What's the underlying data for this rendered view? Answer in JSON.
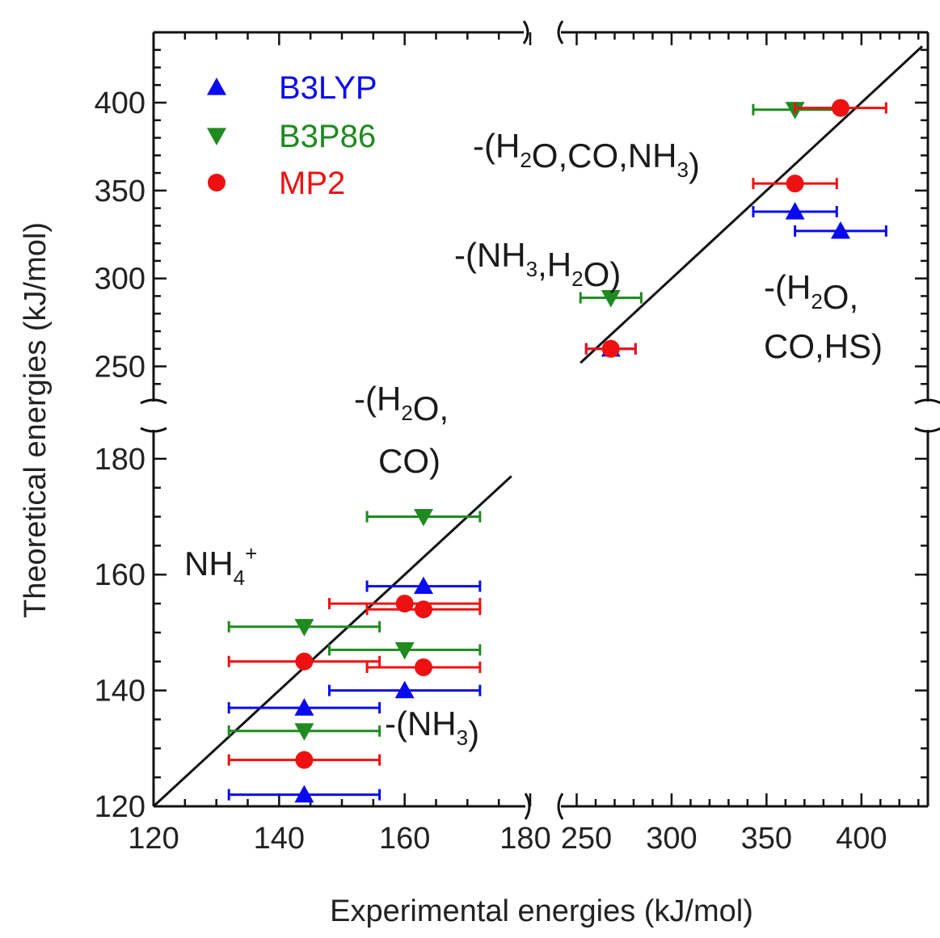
{
  "chart_data": {
    "type": "scatter",
    "xlabel": "Experimental energies (kJ/mol)",
    "ylabel": "Theoretical energies (kJ/mol)",
    "x_segments": [
      {
        "range": [
          120,
          180
        ],
        "ticks": [
          "120",
          "140",
          "160",
          "180"
        ]
      },
      {
        "range": [
          240,
          435
        ],
        "ticks": [
          "250",
          "300",
          "350",
          "400"
        ]
      }
    ],
    "y_segments": [
      {
        "range": [
          120,
          185
        ],
        "ticks": [
          "120",
          "140",
          "160",
          "180"
        ]
      },
      {
        "range": [
          230,
          440
        ],
        "ticks": [
          "250",
          "300",
          "350",
          "400"
        ]
      }
    ],
    "legend_position": "top-left",
    "series": [
      {
        "name": "B3LYP",
        "marker": "triangle-up",
        "color": "#0a0aee",
        "points": [
          {
            "x": 144,
            "y": 122,
            "xerr": 12
          },
          {
            "x": 144,
            "y": 137,
            "xerr": 12
          },
          {
            "x": 160,
            "y": 140,
            "xerr": 12
          },
          {
            "x": 163,
            "y": 158,
            "xerr": 9
          },
          {
            "x": 268,
            "y": 260,
            "xerr": 13
          },
          {
            "x": 365,
            "y": 338,
            "xerr": 22
          },
          {
            "x": 389,
            "y": 327,
            "xerr": 24
          }
        ]
      },
      {
        "name": "B3P86",
        "marker": "triangle-down",
        "color": "#1f8a1f",
        "points": [
          {
            "x": 144,
            "y": 133,
            "xerr": 12
          },
          {
            "x": 144,
            "y": 151,
            "xerr": 12
          },
          {
            "x": 160,
            "y": 147,
            "xerr": 12
          },
          {
            "x": 163,
            "y": 170,
            "xerr": 9
          },
          {
            "x": 268,
            "y": 289,
            "xerr": 16
          },
          {
            "x": 365,
            "y": 396,
            "xerr": 22
          }
        ]
      },
      {
        "name": "MP2",
        "marker": "circle",
        "color": "#ee1111",
        "points": [
          {
            "x": 144,
            "y": 128,
            "xerr": 12
          },
          {
            "x": 144,
            "y": 145,
            "xerr": 12
          },
          {
            "x": 163,
            "y": 144,
            "xerr": 9
          },
          {
            "x": 160,
            "y": 155,
            "xerr": 12
          },
          {
            "x": 163,
            "y": 154,
            "xerr": 9
          },
          {
            "x": 268,
            "y": 260,
            "xerr": 13
          },
          {
            "x": 365,
            "y": 354,
            "xerr": 22
          },
          {
            "x": 389,
            "y": 397,
            "xerr": 24
          }
        ]
      }
    ],
    "annotations": [
      {
        "id": "nh4",
        "parts": [
          [
            "NH",
            "n"
          ],
          [
            "4",
            "sub"
          ],
          [
            "+",
            "sup"
          ]
        ]
      },
      {
        "id": "nh3",
        "parts": [
          [
            "-(NH",
            "n"
          ],
          [
            "3",
            "sub"
          ],
          [
            ")",
            "n"
          ]
        ]
      },
      {
        "id": "h2o-co-l1",
        "parts": [
          [
            "-(H",
            "n"
          ],
          [
            "2",
            "sub"
          ],
          [
            "O,",
            "n"
          ]
        ]
      },
      {
        "id": "h2o-co-l2",
        "parts": [
          [
            "CO)",
            "n"
          ]
        ]
      },
      {
        "id": "nh3-h2o",
        "parts": [
          [
            "-(NH",
            "n"
          ],
          [
            "3",
            "sub"
          ],
          [
            ",H",
            "n"
          ],
          [
            "2",
            "sub"
          ],
          [
            "O)",
            "n"
          ]
        ]
      },
      {
        "id": "h2o-co-nh3",
        "parts": [
          [
            "-(H",
            "n"
          ],
          [
            "2",
            "sub"
          ],
          [
            "O,CO,NH",
            "n"
          ],
          [
            "3",
            "sub"
          ],
          [
            ")",
            "n"
          ]
        ]
      },
      {
        "id": "h2o-co-hs-l1",
        "parts": [
          [
            "-(H",
            "n"
          ],
          [
            "2",
            "sub"
          ],
          [
            "O,",
            "n"
          ]
        ]
      },
      {
        "id": "h2o-co-hs-l2",
        "parts": [
          [
            "CO,HS)",
            "n"
          ]
        ]
      }
    ]
  }
}
